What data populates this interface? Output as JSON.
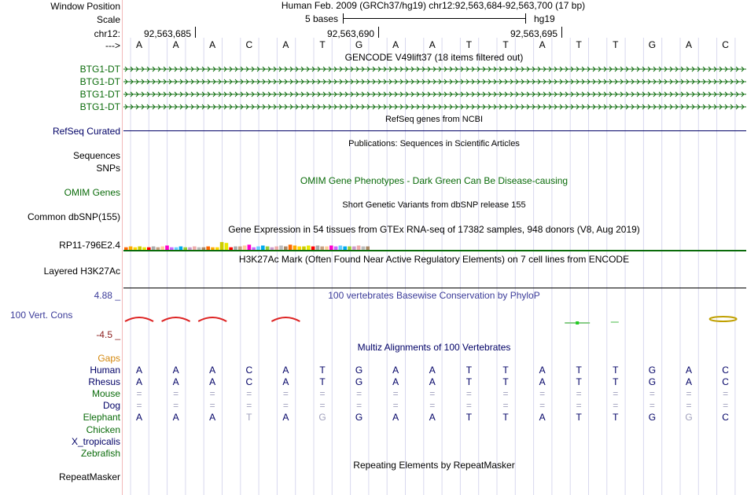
{
  "header": {
    "window_position_label": "Window Position",
    "window_position_value": "Human Feb. 2009 (GRCh37/hg19)   chr12:92,563,684-92,563,700 (17 bp)",
    "scale_label": "Scale",
    "scale_value": "5 bases",
    "assembly": "hg19",
    "chr_label": "chr12:",
    "ruler_ticks": [
      "92,563,685",
      "92,563,690",
      "92,563,695"
    ],
    "strand_arrow": "--->"
  },
  "sequence": [
    "A",
    "A",
    "A",
    "C",
    "A",
    "T",
    "G",
    "A",
    "A",
    "T",
    "T",
    "A",
    "T",
    "T",
    "G",
    "A",
    "C"
  ],
  "gencode": {
    "title": "GENCODE V49lift37 (18 items filtered out)",
    "items": [
      "BTG1-DT",
      "BTG1-DT",
      "BTG1-DT",
      "BTG1-DT"
    ]
  },
  "refseq": {
    "label": "RefSeq Curated",
    "title": "RefSeq genes from NCBI"
  },
  "publications": {
    "label_sequences": "Sequences",
    "label_snps": "SNPs",
    "title": "Publications: Sequences in Scientific Articles"
  },
  "omim": {
    "label": "OMIM Genes",
    "title": "OMIM Gene Phenotypes - Dark Green Can Be Disease-causing"
  },
  "dbsnp": {
    "label": "Common dbSNP(155)",
    "title": "Short Genetic Variants from dbSNP release 155"
  },
  "gtex": {
    "label": "RP11-796E2.4",
    "title": "Gene Expression in 54 tissues from GTEx RNA-seq of 17382 samples, 948 donors (V8, Aug 2019)",
    "bar_colors": [
      "#ff6600",
      "#ffaa00",
      "#ffd700",
      "#cccc00",
      "#e8e800",
      "#ff0000",
      "#aaaaaa",
      "#c8a080",
      "#ffcc99",
      "#ff00cc",
      "#cc66ff",
      "#66ccff",
      "#00aaee",
      "#99cc33",
      "#cc99cc",
      "#eeaaaa",
      "#bbbbbb",
      "#aa8866"
    ]
  },
  "h3k27ac": {
    "label": "Layered H3K27Ac",
    "title": "H3K27Ac Mark (Often Found Near Active Regulatory Elements) on 7 cell lines from ENCODE"
  },
  "conservation": {
    "label": "100 Vert. Cons",
    "max": "4.88 _",
    "min": "-4.5 _",
    "title": "100 vertebrates Basewise Conservation by PhyloP"
  },
  "multiz": {
    "title": "Multiz Alignments of 100 Vertebrates",
    "gaps_label": "Gaps",
    "species": [
      {
        "name": "Human",
        "bases": [
          "A",
          "A",
          "A",
          "C",
          "A",
          "T",
          "G",
          "A",
          "A",
          "T",
          "T",
          "A",
          "T",
          "T",
          "G",
          "A",
          "C"
        ]
      },
      {
        "name": "Rhesus",
        "bases": [
          "A",
          "A",
          "A",
          "C",
          "A",
          "T",
          "G",
          "A",
          "A",
          "T",
          "T",
          "A",
          "T",
          "T",
          "G",
          "A",
          "C"
        ]
      },
      {
        "name": "Mouse",
        "bases": [
          "=",
          "=",
          "=",
          "=",
          "=",
          "=",
          "=",
          "=",
          "=",
          "=",
          "=",
          "=",
          "=",
          "=",
          "=",
          "=",
          "="
        ]
      },
      {
        "name": "Dog",
        "bases": [
          "=",
          "=",
          "=",
          "=",
          "=",
          "=",
          "=",
          "=",
          "=",
          "=",
          "=",
          "=",
          "=",
          "=",
          "=",
          "=",
          "="
        ]
      },
      {
        "name": "Elephant",
        "bases": [
          "A",
          "A",
          "A",
          "T",
          "A",
          "G",
          "G",
          "A",
          "A",
          "T",
          "T",
          "A",
          "T",
          "T",
          "G",
          "G",
          "C"
        ]
      },
      {
        "name": "Chicken",
        "bases": []
      },
      {
        "name": "X_tropicalis",
        "bases": []
      },
      {
        "name": "Zebrafish",
        "bases": []
      }
    ]
  },
  "repeatmasker": {
    "label": "RepeatMasker",
    "title": "Repeating Elements by RepeatMasker"
  },
  "colors": {
    "green": "#0a6b0a",
    "navy": "#000066",
    "gencode_line": "#0b6b0b"
  }
}
